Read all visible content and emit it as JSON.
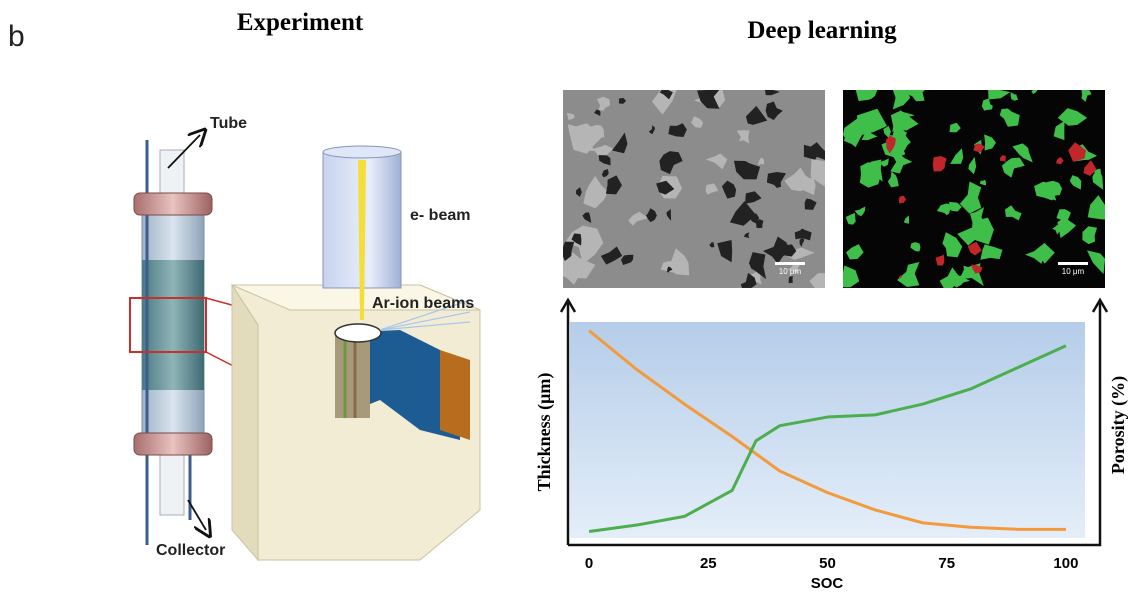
{
  "panel_label": "b",
  "experiment": {
    "title": "Experiment",
    "labels": {
      "tube": "Tube",
      "e_beam": "e- beam",
      "ar_ion_beams": "Ar-ion beams",
      "collector": "Collector"
    }
  },
  "deep_learning": {
    "title": "Deep learning",
    "images": [
      {
        "scale_bar": "10 μm"
      },
      {
        "scale_bar": "10 μm"
      }
    ]
  },
  "chart_data": {
    "type": "line",
    "x_label": "SOC",
    "y_label": "Thickness (μm)",
    "y2_label": "Porosity (%)",
    "x": [
      0,
      10,
      20,
      30,
      35,
      40,
      50,
      60,
      70,
      80,
      90,
      100
    ],
    "xlim": [
      -4,
      104
    ],
    "xticks": [
      0,
      25,
      50,
      75,
      100
    ],
    "ylim": [
      0,
      100
    ],
    "y2lim": [
      0,
      100
    ],
    "series": [
      {
        "color": "#f39a3c",
        "values": [
          96,
          78,
          62,
          47,
          39,
          31,
          21,
          13,
          7,
          5,
          4,
          4
        ]
      },
      {
        "color": "#4cae4c",
        "axis": "y2",
        "values": [
          3,
          6,
          10,
          22,
          45,
          52,
          56,
          57,
          62,
          69,
          79,
          89
        ]
      }
    ]
  }
}
